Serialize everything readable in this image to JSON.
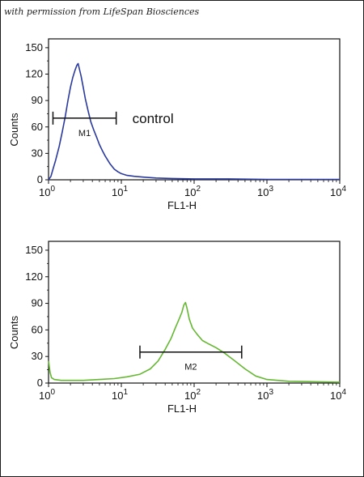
{
  "credit": "with permission from LifeSpan Biosciences",
  "chart_data": [
    {
      "type": "line",
      "title": "",
      "xlabel": "FL1-H",
      "ylabel": "Counts",
      "xscale": "log",
      "xlim": [
        1,
        10000
      ],
      "ylim": [
        0,
        160
      ],
      "x_ticks": [
        {
          "base": "10",
          "exp": "0"
        },
        {
          "base": "10",
          "exp": "1"
        },
        {
          "base": "10",
          "exp": "2"
        },
        {
          "base": "10",
          "exp": "3"
        },
        {
          "base": "10",
          "exp": "4"
        }
      ],
      "y_ticks": [
        "0",
        "30",
        "60",
        "90",
        "120",
        "150"
      ],
      "series": [
        {
          "color": "#2b3a9e",
          "x": [
            1.0,
            1.08,
            1.15,
            1.25,
            1.4,
            1.55,
            1.7,
            1.85,
            2.0,
            2.15,
            2.3,
            2.45,
            2.55,
            2.65,
            2.8,
            3.0,
            3.2,
            3.5,
            3.8,
            4.2,
            4.6,
            5.0,
            5.5,
            6.0,
            7.0,
            8.0,
            9.0,
            10.0,
            12.0,
            15.0,
            20.0,
            30.0,
            50.0,
            100.0,
            300.0,
            1000.0,
            3000.0,
            10000.0
          ],
          "y": [
            0,
            4,
            12,
            22,
            38,
            55,
            72,
            90,
            105,
            116,
            124,
            130,
            132,
            126,
            118,
            105,
            92,
            78,
            66,
            56,
            48,
            40,
            33,
            27,
            18,
            12,
            9,
            7,
            5,
            4,
            3,
            2,
            1.5,
            1,
            1,
            0.5,
            0.5,
            0.5
          ]
        }
      ],
      "gate": {
        "label": "M1",
        "x_start": 1.15,
        "x_end": 8.5,
        "y": 70
      },
      "annotation": "control"
    },
    {
      "type": "line",
      "title": "",
      "xlabel": "FL1-H",
      "ylabel": "Counts",
      "xscale": "log",
      "xlim": [
        1,
        10000
      ],
      "ylim": [
        0,
        160
      ],
      "x_ticks": [
        {
          "base": "10",
          "exp": "0"
        },
        {
          "base": "10",
          "exp": "1"
        },
        {
          "base": "10",
          "exp": "2"
        },
        {
          "base": "10",
          "exp": "3"
        },
        {
          "base": "10",
          "exp": "4"
        }
      ],
      "y_ticks": [
        "0",
        "30",
        "60",
        "90",
        "120",
        "150"
      ],
      "series": [
        {
          "color": "#66b833",
          "x": [
            1.0,
            1.05,
            1.1,
            1.2,
            1.5,
            2.0,
            3.0,
            5.0,
            8.0,
            12.0,
            18.0,
            25.0,
            32.0,
            40.0,
            48.0,
            55.0,
            62.0,
            68.0,
            72.0,
            76.0,
            80.0,
            86.0,
            95.0,
            110.0,
            130.0,
            160.0,
            200.0,
            260.0,
            350.0,
            500.0,
            700.0,
            1000.0,
            2000.0,
            5000.0,
            10000.0
          ],
          "y": [
            25,
            12,
            6,
            4,
            3,
            3,
            3,
            4,
            5,
            7,
            10,
            16,
            25,
            38,
            50,
            62,
            72,
            80,
            88,
            91,
            84,
            72,
            62,
            55,
            48,
            44,
            40,
            34,
            26,
            16,
            8,
            4,
            2,
            1.5,
            1
          ]
        }
      ],
      "gate": {
        "label": "M2",
        "x_start": 18,
        "x_end": 450,
        "y": 35
      }
    }
  ]
}
